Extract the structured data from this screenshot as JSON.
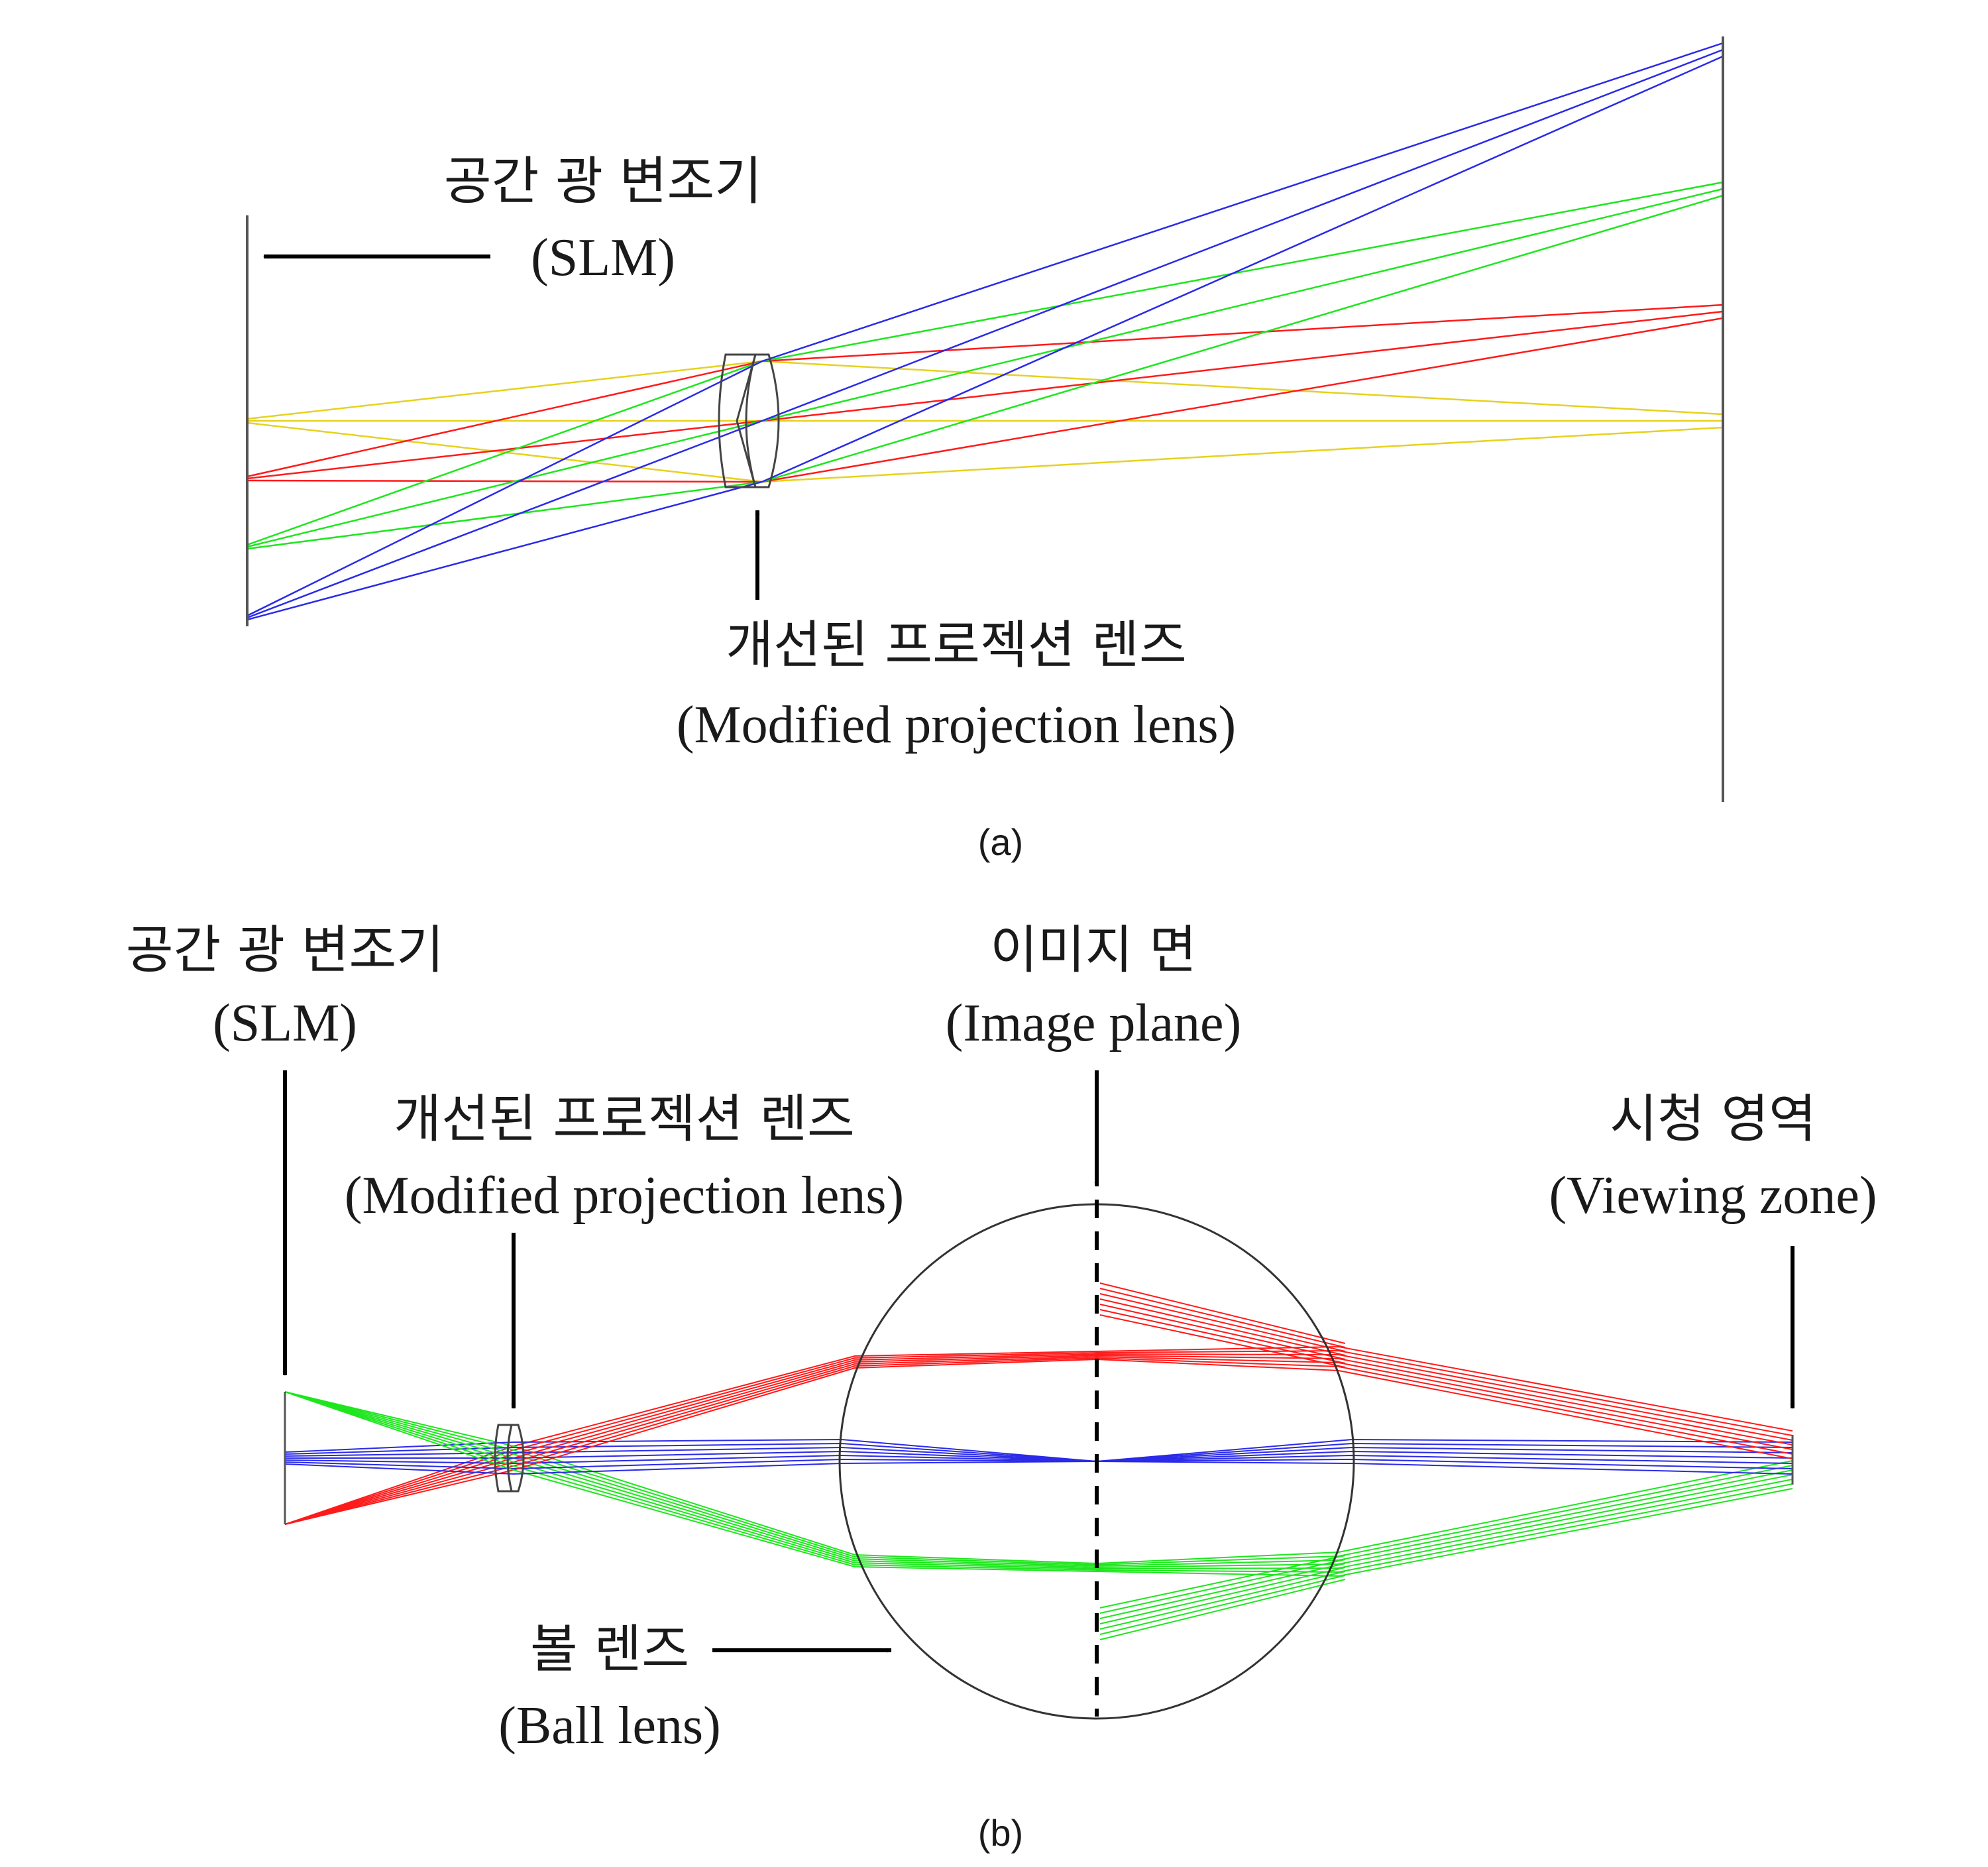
{
  "colors": {
    "red": "#ff1a1a",
    "green": "#1ee61e",
    "blue": "#2a2ae8",
    "yellow": "#e6d21e",
    "optics": "#555555",
    "arrow": "#000000"
  },
  "panel_a": {
    "caption": "(a)",
    "slm": {
      "ko": "공간 광 변조기",
      "en": "(SLM)"
    },
    "lens": {
      "ko": "개선된 프로젝션 렌즈",
      "en": "(Modified projection lens)"
    }
  },
  "panel_b": {
    "caption": "(b)",
    "slm": {
      "ko": "공간 광 변조기",
      "en": "(SLM)"
    },
    "lens": {
      "ko": "개선된 프로젝션 렌즈",
      "en": "(Modified projection lens)"
    },
    "image_plane": {
      "ko": "이미지 면",
      "en": "(Image plane)"
    },
    "viewing_zone": {
      "ko": "시청 영역",
      "en": "(Viewing zone)"
    },
    "ball_lens": {
      "ko": "볼 렌즈",
      "en": "(Ball lens)"
    }
  }
}
